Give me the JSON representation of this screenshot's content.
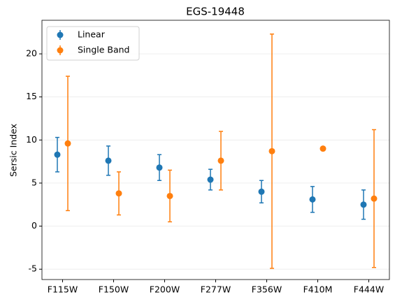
{
  "chart_data": {
    "type": "errorbar",
    "title": "EGS-19448",
    "y_label": "Sersic Index",
    "categories": [
      "F115W",
      "F150W",
      "F200W",
      "F277W",
      "F356W",
      "F410M",
      "F444W"
    ],
    "series": [
      {
        "name": "Linear",
        "color": "#1f77b4",
        "values": [
          8.3,
          7.6,
          6.8,
          5.4,
          4.0,
          3.1,
          2.5
        ],
        "errors": [
          2.0,
          1.7,
          1.5,
          1.2,
          1.3,
          1.5,
          1.7
        ]
      },
      {
        "name": "Single Band",
        "color": "#ff7f0e",
        "values": [
          9.6,
          3.8,
          3.5,
          7.6,
          8.7,
          9.0,
          3.2
        ],
        "errors": [
          7.8,
          2.5,
          3.0,
          3.4,
          13.6,
          null,
          8.0
        ]
      }
    ],
    "ylim": [
      -6.2,
      23.9
    ],
    "yticks": [
      -5,
      0,
      5,
      10,
      15,
      20
    ],
    "grid": true,
    "legend": "upper left"
  }
}
